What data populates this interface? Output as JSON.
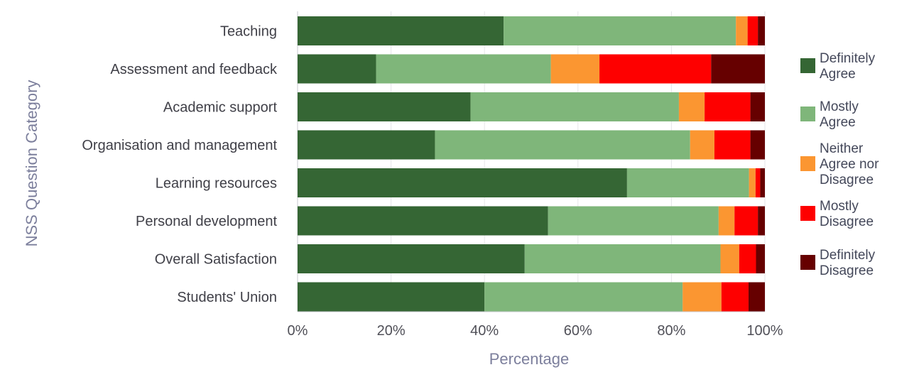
{
  "chart_data": {
    "type": "bar",
    "orientation": "horizontal",
    "stacked": "100%",
    "xlabel": "Percentage",
    "ylabel": "NSS Question Category",
    "xlim": [
      0,
      100
    ],
    "xticks": [
      "0%",
      "20%",
      "40%",
      "60%",
      "80%",
      "100%"
    ],
    "grid": "vertical, light",
    "legend_position": "right",
    "categories": [
      "Teaching",
      "Assessment and feedback",
      "Academic support",
      "Organisation and management",
      "Learning resources",
      "Personal development",
      "Overall Satisfaction",
      "Students' Union"
    ],
    "series": [
      {
        "name": "Definitely Agree",
        "legend_lines": [
          "Definitely",
          "Agree"
        ],
        "color": "#356634",
        "values": [
          44.1,
          16.8,
          37.0,
          29.4,
          70.5,
          53.6,
          48.6,
          40.0
        ]
      },
      {
        "name": "Mostly Agree",
        "legend_lines": [
          "Mostly",
          "Agree"
        ],
        "color": "#7fb67a",
        "values": [
          49.7,
          37.4,
          44.6,
          54.6,
          26.1,
          36.5,
          41.9,
          42.4
        ]
      },
      {
        "name": "Neither Agree nor Disagree",
        "legend_lines": [
          "Neither",
          "Agree nor",
          "Disagree"
        ],
        "color": "#fb9631",
        "values": [
          2.5,
          10.4,
          5.5,
          5.2,
          1.4,
          3.4,
          4.0,
          8.3
        ]
      },
      {
        "name": "Mostly Disagree",
        "legend_lines": [
          "Mostly",
          "Disagree"
        ],
        "color": "#fe0000",
        "values": [
          2.2,
          23.9,
          9.8,
          7.7,
          1.0,
          5.0,
          3.6,
          5.8
        ]
      },
      {
        "name": "Definitely Disagree",
        "legend_lines": [
          "Definitely",
          "Disagree"
        ],
        "color": "#660000",
        "values": [
          1.5,
          11.5,
          3.1,
          3.1,
          1.0,
          1.5,
          1.9,
          3.5
        ]
      }
    ]
  }
}
